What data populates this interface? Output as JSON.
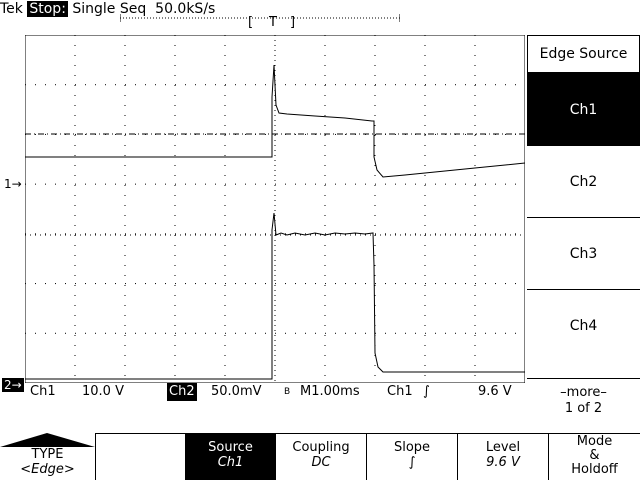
{
  "status": {
    "brand": "Tek",
    "acq_state": "Stop:",
    "mode": "Single Seq",
    "sample_rate": "50.0kS/s",
    "trigger_marker": "T"
  },
  "markers": {
    "ch1": "1→",
    "ch2": "2→"
  },
  "readout": {
    "ch1_label": "Ch1",
    "ch1_scale": "10.0 V",
    "ch2_label": "Ch2",
    "ch2_scale": "50.0mV",
    "bw_mark": "B",
    "timebase": "M1.00ms",
    "trig_source": "Ch1",
    "trig_slope_glyph": "∫",
    "trig_level": "9.6 V"
  },
  "right_menu": {
    "title": "Edge Source",
    "items": [
      "Ch1",
      "Ch2",
      "Ch3",
      "Ch4"
    ],
    "selected": 0,
    "more_label": "–more–",
    "more_page": "1 of 2"
  },
  "bottom_menu": {
    "type_label": "TYPE",
    "type_value": "<Edge>",
    "source_label": "Source",
    "source_value": "Ch1",
    "coupling_label": "Coupling",
    "coupling_value": "DC",
    "slope_label": "Slope",
    "slope_value": "∫",
    "level_label": "Level",
    "level_value": "9.6 V",
    "mode_label_1": "Mode",
    "mode_label_2": "&",
    "mode_label_3": "Holdoff"
  },
  "colors": {
    "background": "#ffffff",
    "foreground": "#000000"
  }
}
